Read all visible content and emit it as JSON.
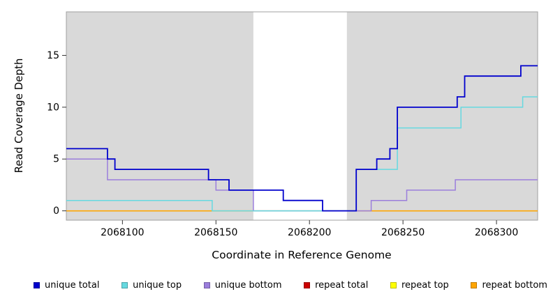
{
  "chart_data": {
    "type": "line",
    "subtype": "step",
    "title": "",
    "xlabel": "Coordinate in Reference Genome",
    "ylabel": "Read Coverage Depth",
    "xlim": [
      2068070,
      2068322
    ],
    "ylim": [
      -0.9,
      19.2
    ],
    "x_ticks": [
      "2068100",
      "2068150",
      "2068200",
      "2068250",
      "2068300"
    ],
    "x_tick_values": [
      2068100,
      2068150,
      2068200,
      2068250,
      2068300
    ],
    "y_ticks": [
      "0",
      "5",
      "10",
      "15"
    ],
    "y_tick_values": [
      0,
      5,
      10,
      15
    ],
    "grid": false,
    "legend_position": "bottom",
    "background_color": "#ffffff",
    "shaded_region_color": "#d9d9d9",
    "plot_border_color": "#a0a0a0",
    "shaded_regions": [
      [
        2068070,
        2068170
      ],
      [
        2068220,
        2068322
      ]
    ],
    "series": [
      {
        "name": "repeat total",
        "color": "#CC0000",
        "width": 1.3,
        "steps": [
          [
            2068070,
            0
          ]
        ]
      },
      {
        "name": "repeat top",
        "color": "#FFFF00",
        "width": 1.3,
        "steps": [
          [
            2068070,
            0
          ]
        ]
      },
      {
        "name": "repeat bottom",
        "color": "#FFA500",
        "width": 1.5,
        "steps": [
          [
            2068070,
            0
          ]
        ]
      },
      {
        "name": "unique bottom",
        "color": "#9B7EDC",
        "width": 1.5,
        "steps": [
          [
            2068070,
            5
          ],
          [
            2068092,
            3
          ],
          [
            2068150,
            2
          ],
          [
            2068170,
            0
          ],
          [
            2068233,
            1
          ],
          [
            2068252,
            2
          ],
          [
            2068278,
            3
          ]
        ]
      },
      {
        "name": "unique top",
        "color": "#66D9E0",
        "width": 1.5,
        "steps": [
          [
            2068070,
            1
          ],
          [
            2068148,
            0
          ],
          [
            2068225,
            4
          ],
          [
            2068247,
            8
          ],
          [
            2068281,
            10
          ],
          [
            2068314,
            11
          ]
        ]
      },
      {
        "name": "unique total",
        "color": "#0000CD",
        "width": 1.8,
        "steps": [
          [
            2068070,
            6
          ],
          [
            2068092,
            5
          ],
          [
            2068096,
            4
          ],
          [
            2068146,
            3
          ],
          [
            2068157,
            2
          ],
          [
            2068186,
            1
          ],
          [
            2068207,
            0
          ],
          [
            2068225,
            4
          ],
          [
            2068236,
            5
          ],
          [
            2068243,
            6
          ],
          [
            2068247,
            10
          ],
          [
            2068279,
            11
          ],
          [
            2068283,
            13
          ],
          [
            2068313,
            14
          ]
        ]
      }
    ],
    "legend": [
      {
        "label": "unique total",
        "color": "#0000CD"
      },
      {
        "label": "unique top",
        "color": "#66D9E0"
      },
      {
        "label": "unique bottom",
        "color": "#9B7EDC"
      },
      {
        "label": "repeat total",
        "color": "#CC0000"
      },
      {
        "label": "repeat top",
        "color": "#FFFF00"
      },
      {
        "label": "repeat bottom",
        "color": "#FFA500"
      }
    ]
  }
}
